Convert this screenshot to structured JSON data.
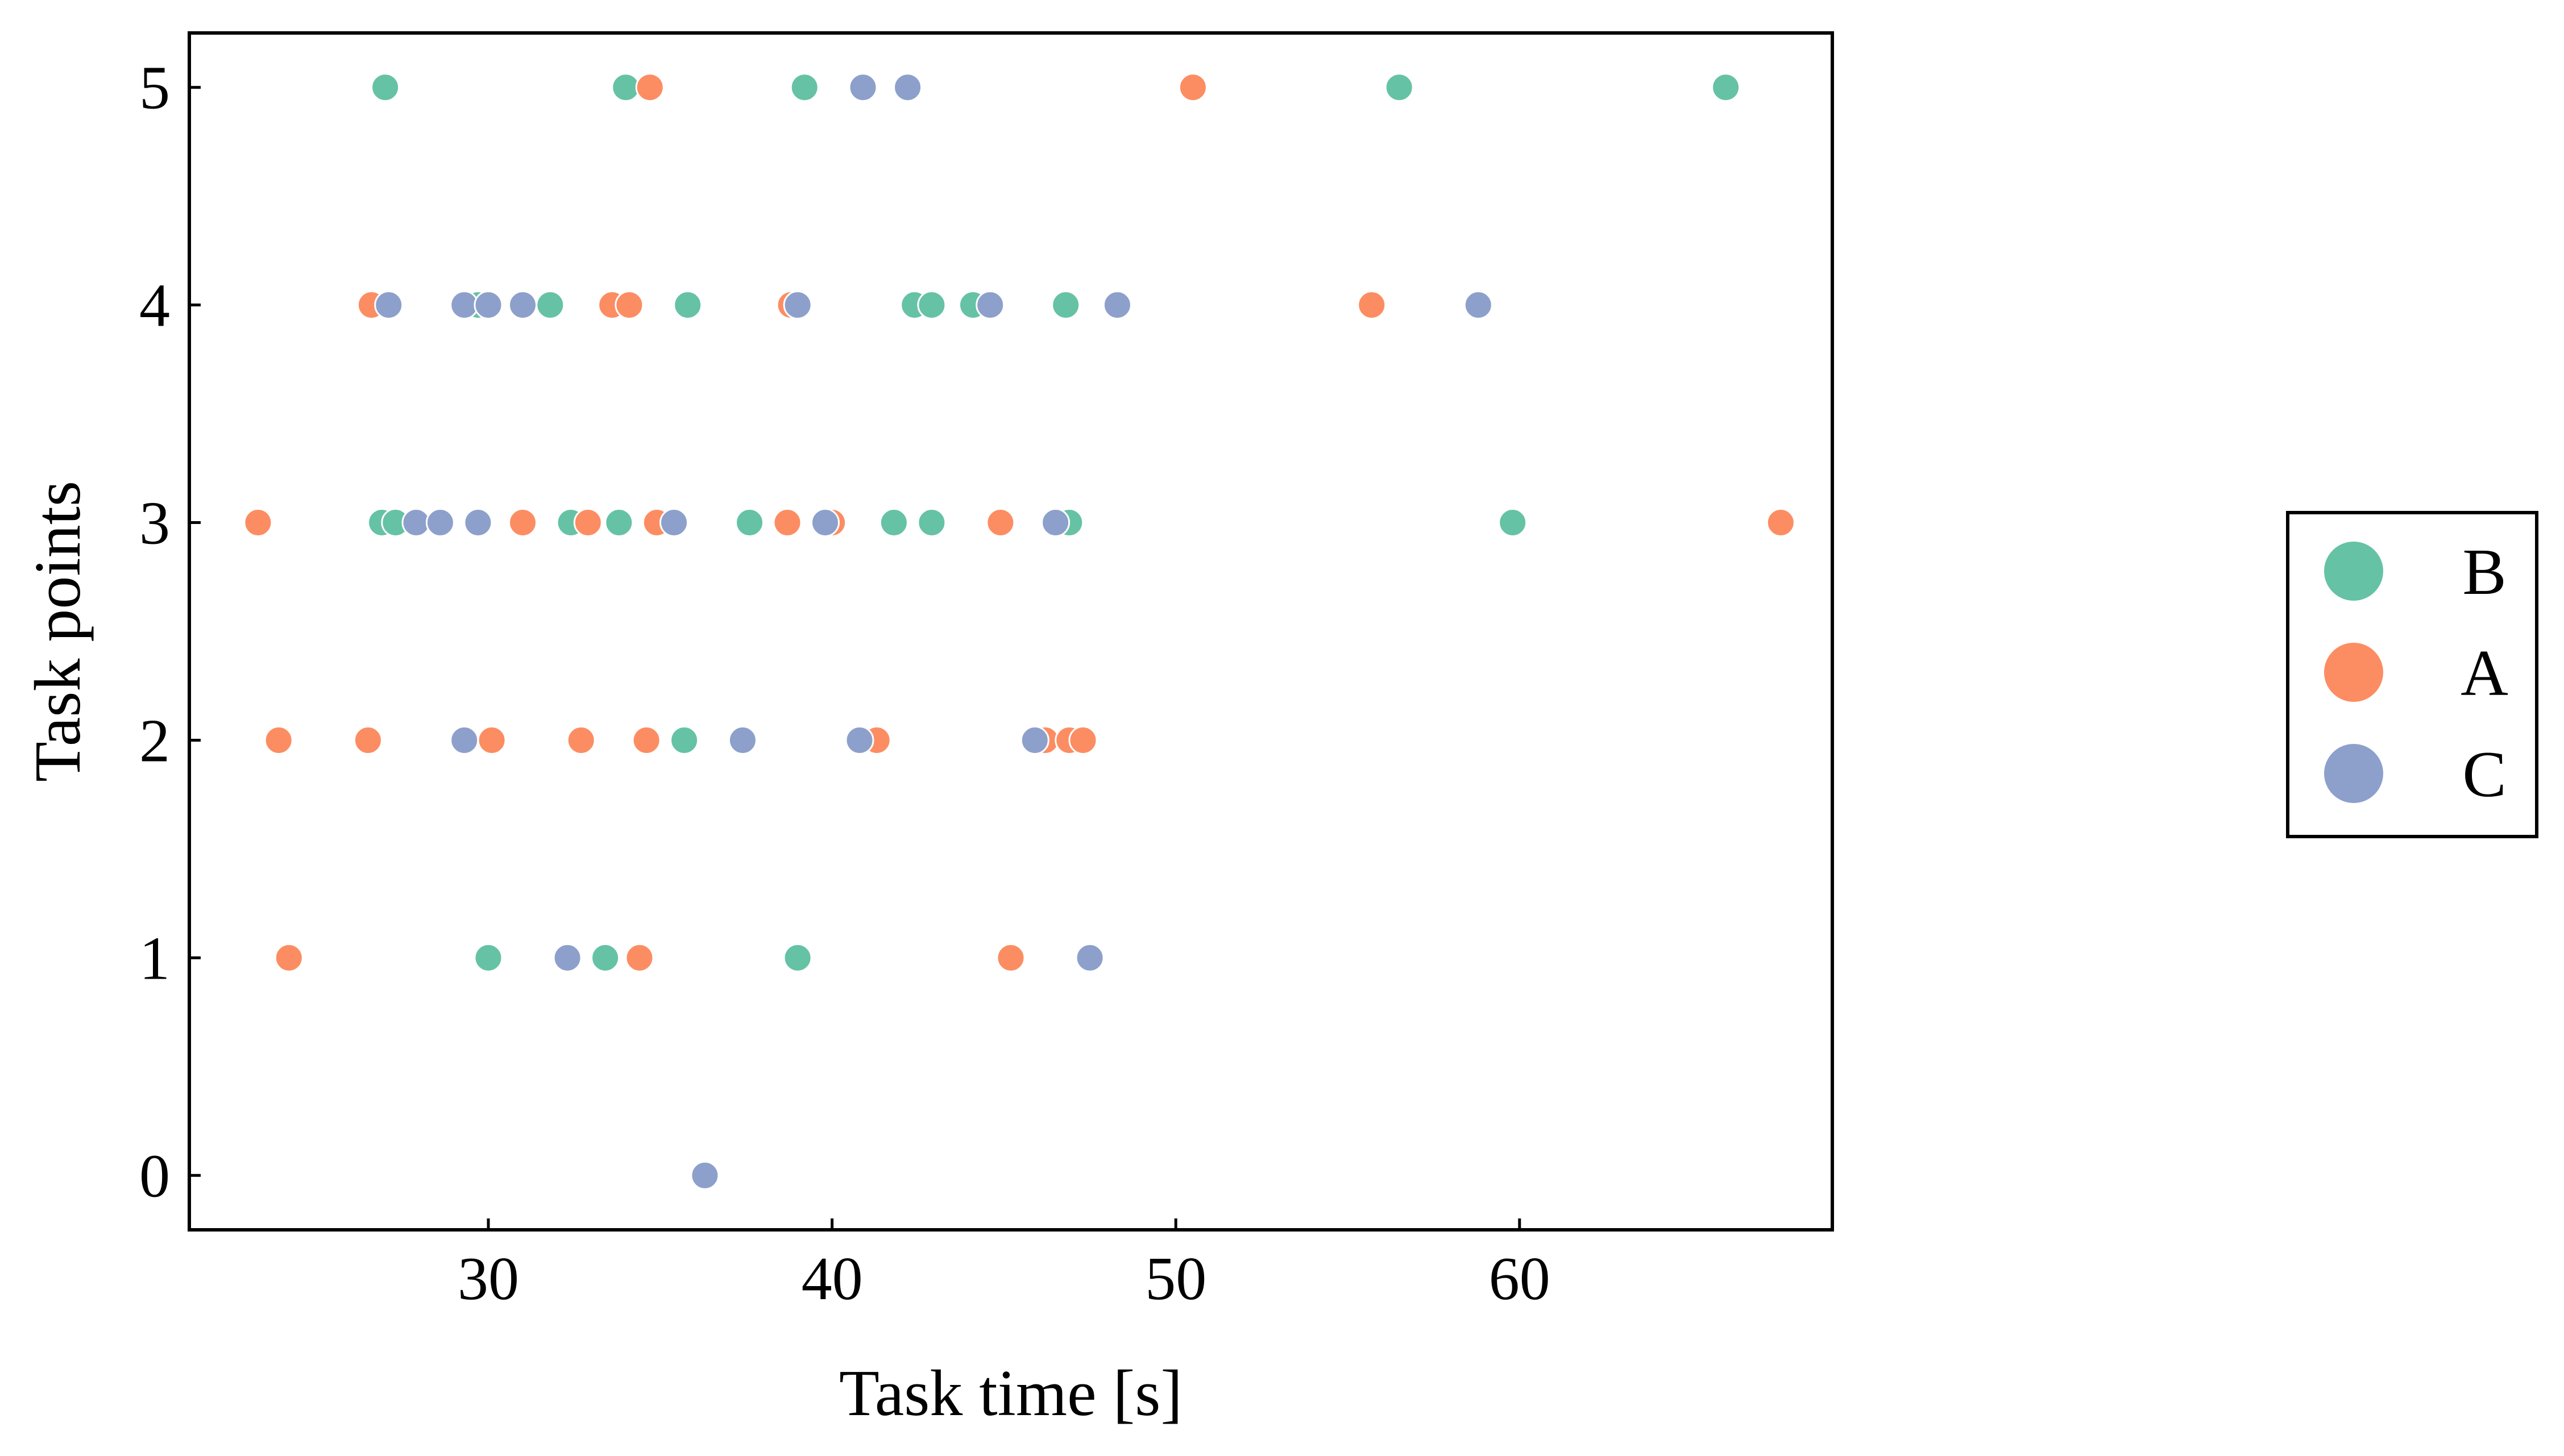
{
  "chart_data": {
    "type": "scatter",
    "title": "",
    "xlabel": "Task time [s]",
    "ylabel": "Task points",
    "xlim": [
      21.3,
      69.1
    ],
    "ylim": [
      -0.25,
      5.25
    ],
    "xticks": [
      30,
      40,
      50,
      60
    ],
    "yticks": [
      0,
      1,
      2,
      3,
      4,
      5
    ],
    "grid": false,
    "legend_position": "outside-right",
    "series": [
      {
        "name": "B",
        "color": "#66c2a5",
        "points": [
          [
            27.0,
            5
          ],
          [
            34.0,
            5
          ],
          [
            39.2,
            5
          ],
          [
            56.5,
            5
          ],
          [
            66.0,
            5
          ],
          [
            29.7,
            4
          ],
          [
            31.8,
            4
          ],
          [
            33.7,
            4
          ],
          [
            35.8,
            4
          ],
          [
            42.4,
            4
          ],
          [
            42.9,
            4
          ],
          [
            44.1,
            4
          ],
          [
            46.8,
            4
          ],
          [
            26.9,
            3
          ],
          [
            27.3,
            3
          ],
          [
            32.4,
            3
          ],
          [
            33.8,
            3
          ],
          [
            37.6,
            3
          ],
          [
            41.8,
            3
          ],
          [
            42.9,
            3
          ],
          [
            46.9,
            3
          ],
          [
            59.8,
            3
          ],
          [
            35.7,
            2
          ],
          [
            30.0,
            1
          ],
          [
            33.4,
            1
          ],
          [
            39.0,
            1
          ]
        ]
      },
      {
        "name": "A",
        "color": "#fc8d62",
        "points": [
          [
            34.7,
            5
          ],
          [
            50.5,
            5
          ],
          [
            26.6,
            4
          ],
          [
            33.6,
            4
          ],
          [
            34.1,
            4
          ],
          [
            38.8,
            4
          ],
          [
            55.7,
            4
          ],
          [
            23.3,
            3
          ],
          [
            31.0,
            3
          ],
          [
            32.9,
            3
          ],
          [
            34.9,
            3
          ],
          [
            38.7,
            3
          ],
          [
            40.0,
            3
          ],
          [
            44.9,
            3
          ],
          [
            67.6,
            3
          ],
          [
            23.9,
            2
          ],
          [
            26.5,
            2
          ],
          [
            30.1,
            2
          ],
          [
            32.7,
            2
          ],
          [
            34.6,
            2
          ],
          [
            41.3,
            2
          ],
          [
            46.2,
            2
          ],
          [
            46.9,
            2
          ],
          [
            47.3,
            2
          ],
          [
            24.2,
            1
          ],
          [
            34.4,
            1
          ],
          [
            45.2,
            1
          ]
        ]
      },
      {
        "name": "C",
        "color": "#8da0cb",
        "points": [
          [
            40.9,
            5
          ],
          [
            42.2,
            5
          ],
          [
            27.1,
            4
          ],
          [
            29.3,
            4
          ],
          [
            30.0,
            4
          ],
          [
            31.0,
            4
          ],
          [
            39.0,
            4
          ],
          [
            44.6,
            4
          ],
          [
            48.3,
            4
          ],
          [
            58.8,
            4
          ],
          [
            27.9,
            3
          ],
          [
            28.6,
            3
          ],
          [
            29.7,
            3
          ],
          [
            35.4,
            3
          ],
          [
            39.8,
            3
          ],
          [
            46.5,
            3
          ],
          [
            29.3,
            2
          ],
          [
            37.4,
            2
          ],
          [
            40.8,
            2
          ],
          [
            45.9,
            2
          ],
          [
            32.3,
            1
          ],
          [
            47.5,
            1
          ],
          [
            36.3,
            0
          ]
        ]
      }
    ]
  }
}
